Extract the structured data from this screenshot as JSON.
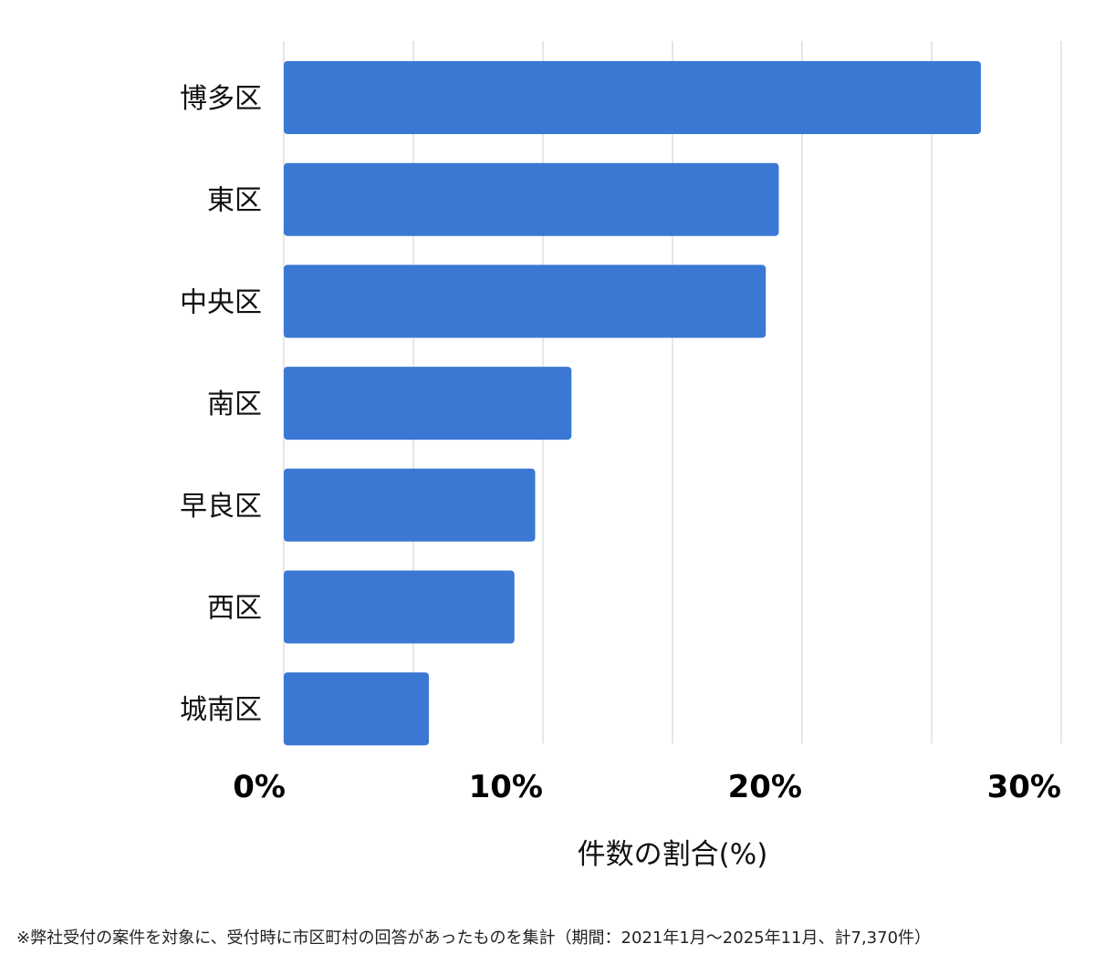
{
  "chart_data": {
    "type": "bar",
    "orientation": "horizontal",
    "categories": [
      "博多区",
      "東区",
      "中央区",
      "南区",
      "早良区",
      "西区",
      "城南区"
    ],
    "values": [
      26.9,
      19.1,
      18.6,
      11.1,
      9.7,
      8.9,
      5.6
    ],
    "xlim": [
      0,
      30
    ],
    "xticks": [
      0,
      10,
      20,
      30
    ],
    "xtick_labels": [
      "0%",
      "10%",
      "20%",
      "30%"
    ],
    "xlabel": "件数の割合(%)",
    "ylabel": "",
    "title": "",
    "grid": true,
    "bar_color": "#3b78d4",
    "grid_color": "#dddddd"
  },
  "footnote": "※弊社受付の案件を対象に、受付時に市区町村の回答があったものを集計（期間：2021年1月〜2025年11月、計7,370件）"
}
